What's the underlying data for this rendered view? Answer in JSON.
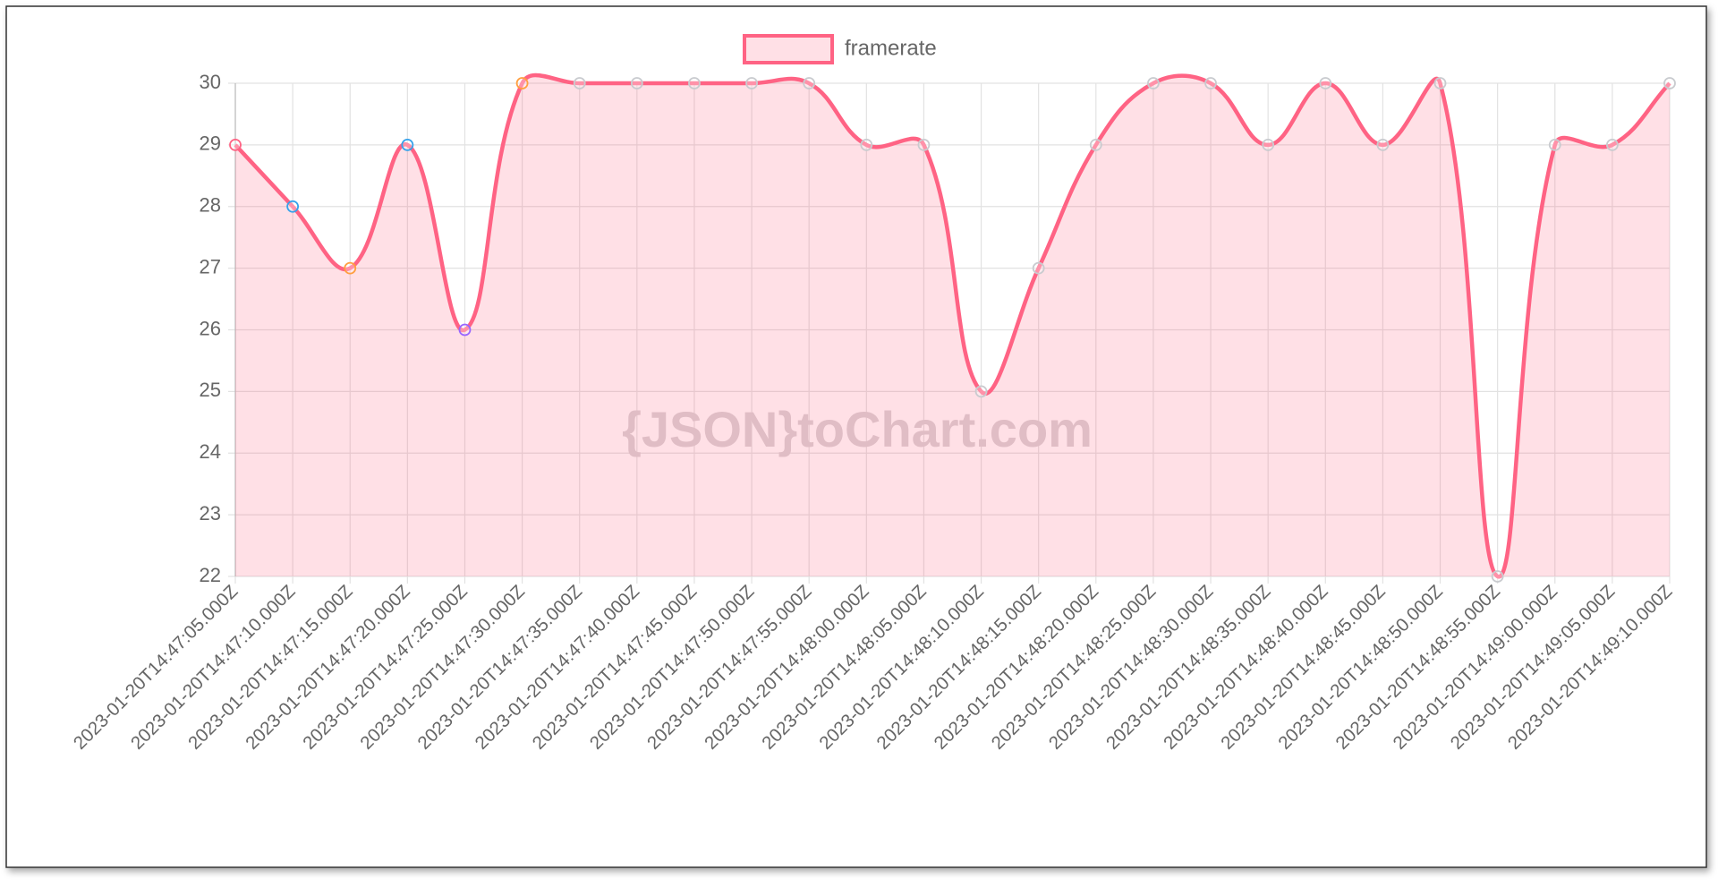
{
  "chart_data": {
    "type": "line",
    "watermark": "{JSON}toChart.com",
    "categories": [
      "2023-01-20T14:47:05.000Z",
      "2023-01-20T14:47:10.000Z",
      "2023-01-20T14:47:15.000Z",
      "2023-01-20T14:47:20.000Z",
      "2023-01-20T14:47:25.000Z",
      "2023-01-20T14:47:30.000Z",
      "2023-01-20T14:47:35.000Z",
      "2023-01-20T14:47:40.000Z",
      "2023-01-20T14:47:45.000Z",
      "2023-01-20T14:47:50.000Z",
      "2023-01-20T14:47:55.000Z",
      "2023-01-20T14:48:00.000Z",
      "2023-01-20T14:48:05.000Z",
      "2023-01-20T14:48:10.000Z",
      "2023-01-20T14:48:15.000Z",
      "2023-01-20T14:48:20.000Z",
      "2023-01-20T14:48:25.000Z",
      "2023-01-20T14:48:30.000Z",
      "2023-01-20T14:48:35.000Z",
      "2023-01-20T14:48:40.000Z",
      "2023-01-20T14:48:45.000Z",
      "2023-01-20T14:48:50.000Z",
      "2023-01-20T14:48:55.000Z",
      "2023-01-20T14:49:00.000Z",
      "2023-01-20T14:49:05.000Z",
      "2023-01-20T14:49:10.000Z"
    ],
    "series": [
      {
        "name": "framerate",
        "color": "#ff6384",
        "fill": "rgba(255,99,132,0.2)",
        "values": [
          29,
          28,
          27,
          29,
          26,
          30,
          30,
          30,
          30,
          30,
          30,
          29,
          29,
          25,
          27,
          29,
          30,
          30,
          29,
          30,
          29,
          30,
          22,
          29,
          29,
          30
        ],
        "point_colors": [
          "#ff6384",
          "#36a2eb",
          "#ff9f40",
          "#36a2eb",
          "#9966ff",
          "#ff9f40",
          "#c9cbcf",
          "#c9cbcf",
          "#c9cbcf",
          "#c9cbcf",
          "#c9cbcf",
          "#c9cbcf",
          "#c9cbcf",
          "#c9cbcf",
          "#c9cbcf",
          "#c9cbcf",
          "#c9cbcf",
          "#c9cbcf",
          "#c9cbcf",
          "#c9cbcf",
          "#c9cbcf",
          "#c9cbcf",
          "#c9cbcf",
          "#c9cbcf",
          "#c9cbcf",
          "#c9cbcf"
        ]
      }
    ],
    "ylim": [
      22,
      30
    ],
    "yticks": [
      22,
      23,
      24,
      25,
      26,
      27,
      28,
      29,
      30
    ],
    "grid": true,
    "legend": "top"
  }
}
